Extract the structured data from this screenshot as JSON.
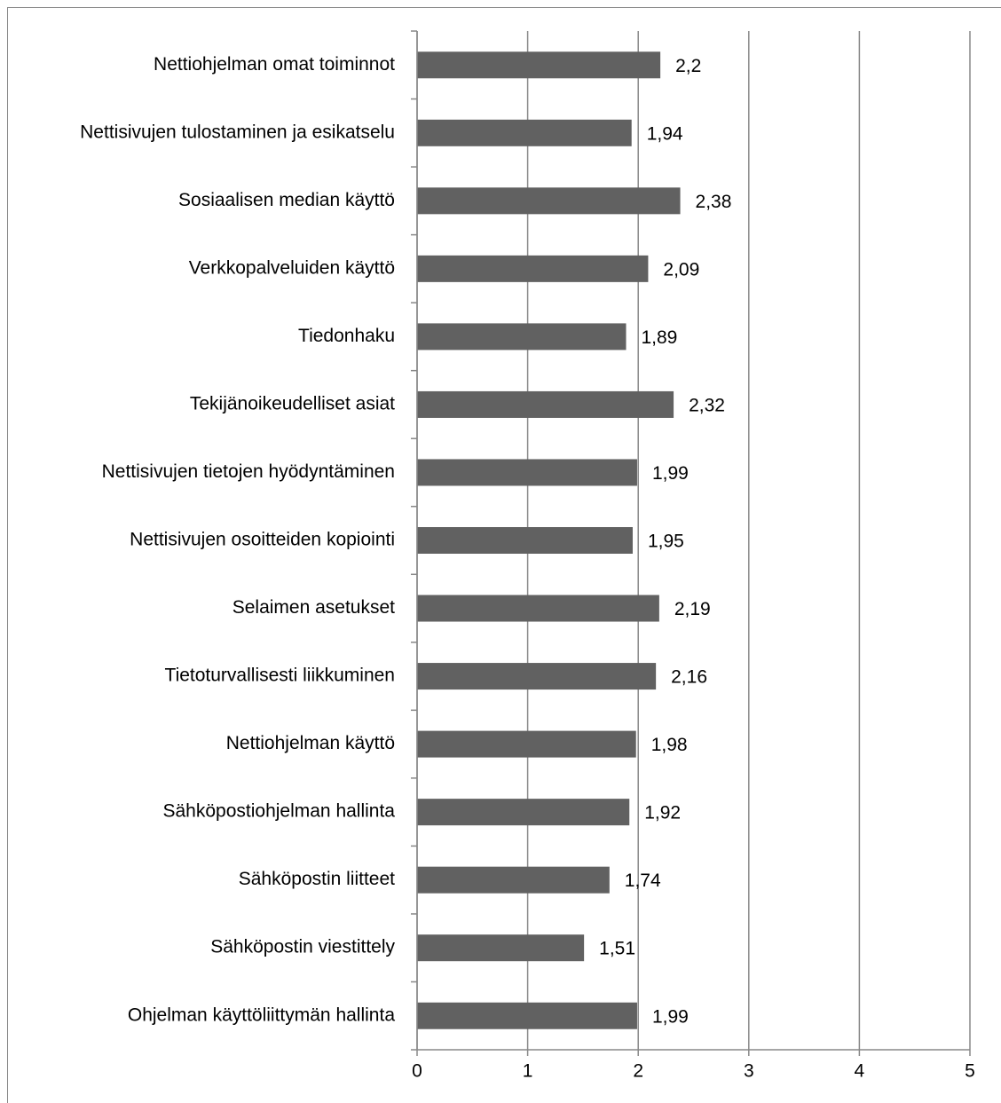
{
  "chart_data": {
    "type": "bar",
    "orientation": "horizontal",
    "categories": [
      "Nettiohjelman omat toiminnot",
      "Nettisivujen tulostaminen ja esikatselu",
      "Sosiaalisen median käyttö",
      "Verkkopalveluiden käyttö",
      "Tiedonhaku",
      "Tekijänoikeudelliset asiat",
      "Nettisivujen tietojen hyödyntäminen",
      "Nettisivujen osoitteiden kopiointi",
      "Selaimen asetukset",
      "Tietoturvallisesti liikkuminen",
      "Nettiohjelman käyttö",
      "Sähköpostiohjelman hallinta",
      "Sähköpostin liitteet",
      "Sähköpostin viestittely",
      "Ohjelman käyttöliittymän hallinta"
    ],
    "values": [
      2.2,
      1.94,
      2.38,
      2.09,
      1.89,
      2.32,
      1.99,
      1.95,
      2.19,
      2.16,
      1.98,
      1.92,
      1.74,
      1.51,
      1.99
    ],
    "value_labels": [
      "2,2",
      "1,94",
      "2,38",
      "2,09",
      "1,89",
      "2,32",
      "1,99",
      "1,95",
      "2,19",
      "2,16",
      "1,98",
      "1,92",
      "1,74",
      "1,51",
      "1,99"
    ],
    "color": "#616161",
    "xlim": [
      0,
      5
    ],
    "xticks": [
      0,
      1,
      2,
      3,
      4,
      5
    ],
    "grid": true
  }
}
